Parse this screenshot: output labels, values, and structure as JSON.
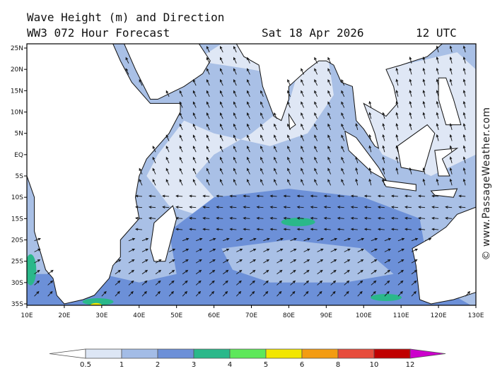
{
  "header": {
    "title": "Wave Height (m) and Direction",
    "model": "WW3 072 Hour Forecast",
    "date": "Sat 18 Apr 2026",
    "time": "12 UTC"
  },
  "map": {
    "lon_labels": [
      "10E",
      "20E",
      "30E",
      "40E",
      "50E",
      "60E",
      "70E",
      "80E",
      "90E",
      "100E",
      "110E",
      "120E",
      "130E"
    ],
    "lat_labels": [
      "25N",
      "20N",
      "15N",
      "10N",
      "5N",
      "EQ",
      "5S",
      "10S",
      "15S",
      "20S",
      "25S",
      "30S",
      "35S"
    ]
  },
  "colorbar": {
    "labels": [
      "0.5",
      "1",
      "2",
      "3",
      "4",
      "5",
      "6",
      "8",
      "10",
      "12"
    ],
    "colors": [
      "#ffffff",
      "#dde6f5",
      "#a3bce6",
      "#6c90d8",
      "#2ab88a",
      "#5ee85a",
      "#f2e600",
      "#f39c12",
      "#e74c3c",
      "#c00000",
      "#cc00cc"
    ]
  },
  "watermark": "© www.PassageWeather.com"
}
